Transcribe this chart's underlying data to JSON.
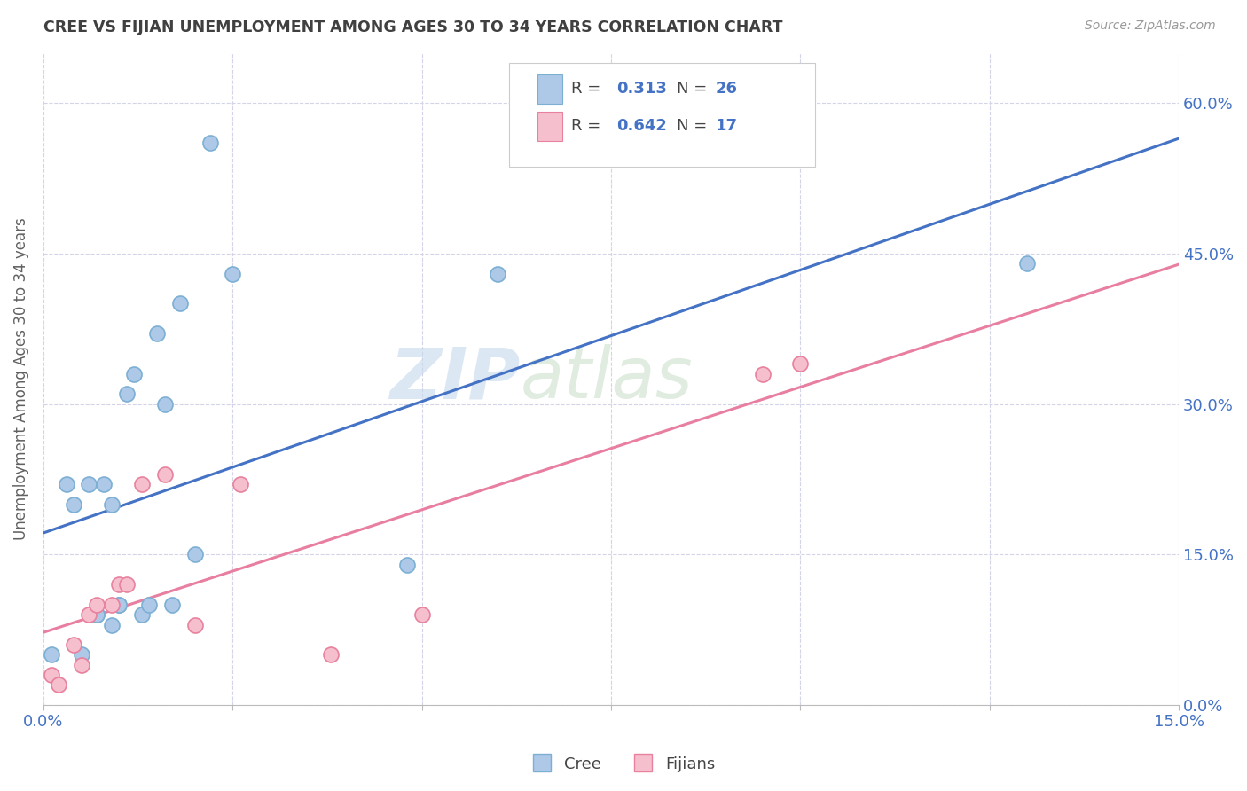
{
  "title": "CREE VS FIJIAN UNEMPLOYMENT AMONG AGES 30 TO 34 YEARS CORRELATION CHART",
  "source": "Source: ZipAtlas.com",
  "ylabel": "Unemployment Among Ages 30 to 34 years",
  "xlim": [
    0.0,
    0.15
  ],
  "ylim": [
    0.0,
    0.65
  ],
  "xticks": [
    0.0,
    0.025,
    0.05,
    0.075,
    0.1,
    0.125,
    0.15
  ],
  "yticks": [
    0.0,
    0.15,
    0.3,
    0.45,
    0.6
  ],
  "ytick_labels": [
    "0.0%",
    "15.0%",
    "30.0%",
    "45.0%",
    "60.0%"
  ],
  "cree_x": [
    0.001,
    0.003,
    0.004,
    0.005,
    0.006,
    0.007,
    0.007,
    0.008,
    0.009,
    0.009,
    0.01,
    0.01,
    0.011,
    0.012,
    0.013,
    0.014,
    0.015,
    0.016,
    0.017,
    0.018,
    0.02,
    0.022,
    0.025,
    0.048,
    0.06,
    0.13
  ],
  "cree_y": [
    0.05,
    0.22,
    0.2,
    0.05,
    0.22,
    0.09,
    0.09,
    0.22,
    0.2,
    0.08,
    0.1,
    0.1,
    0.31,
    0.33,
    0.09,
    0.1,
    0.37,
    0.3,
    0.1,
    0.4,
    0.15,
    0.56,
    0.43,
    0.14,
    0.43,
    0.44
  ],
  "fijian_x": [
    0.001,
    0.002,
    0.004,
    0.005,
    0.006,
    0.007,
    0.009,
    0.01,
    0.011,
    0.013,
    0.016,
    0.02,
    0.026,
    0.038,
    0.05,
    0.095,
    0.1
  ],
  "fijian_y": [
    0.03,
    0.02,
    0.06,
    0.04,
    0.09,
    0.1,
    0.1,
    0.12,
    0.12,
    0.22,
    0.23,
    0.08,
    0.22,
    0.05,
    0.09,
    0.33,
    0.34
  ],
  "cree_color": "#aec9e8",
  "cree_edge_color": "#7bafd4",
  "fijian_color": "#f5bfce",
  "fijian_edge_color": "#e8819e",
  "cree_line_color": "#4472c4",
  "fijian_line_color": "#e87fa0",
  "cree_R": 0.313,
  "cree_N": 26,
  "fijian_R": 0.642,
  "fijian_N": 17,
  "watermark_zip": "ZIP",
  "watermark_atlas": "atlas",
  "background_color": "#ffffff",
  "grid_color": "#d4d4e8",
  "title_color": "#404040",
  "axis_label_color": "#606060",
  "tick_label_color": "#4472c4",
  "legend_R_color": "#4472c4",
  "legend_N_color": "#4472c4"
}
